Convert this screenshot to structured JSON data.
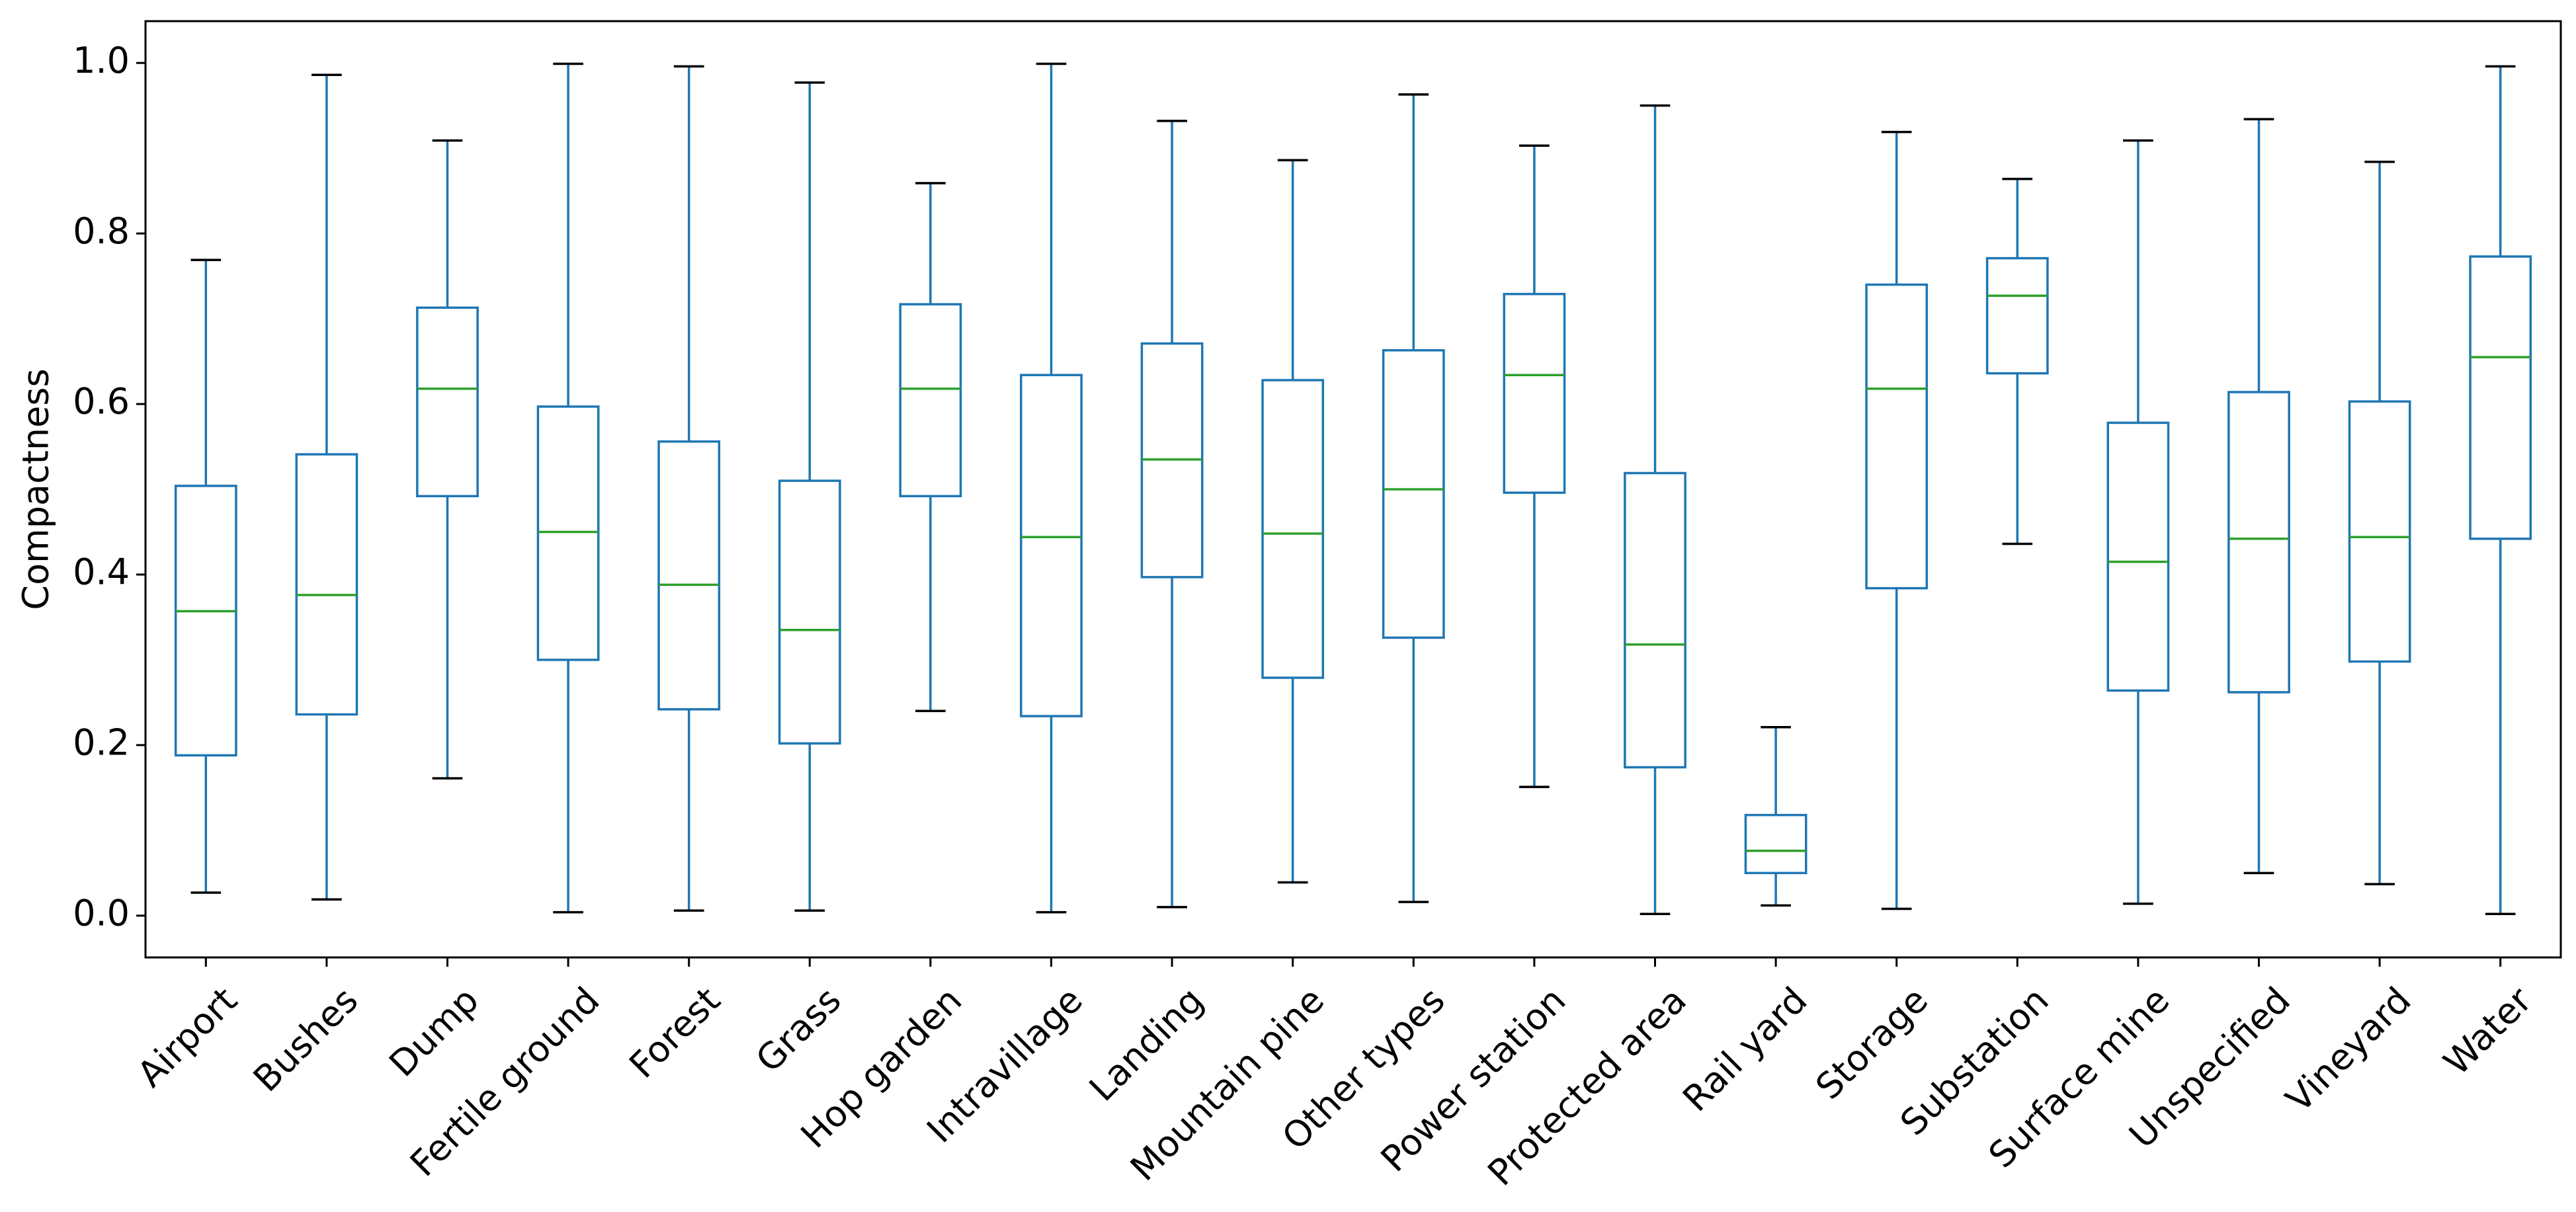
{
  "chart_data": {
    "type": "box",
    "y_label": "Compactness",
    "categories": [
      "Airport",
      "Bushes",
      "Dump",
      "Fertile ground",
      "Forest",
      "Grass",
      "Hop garden",
      "Intravillage",
      "Landing",
      "Mountain pine",
      "Other types",
      "Power station",
      "Protected area",
      "Rail yard",
      "Storage",
      "Substation",
      "Surface mine",
      "Unspecified",
      "Vineyard",
      "Water"
    ],
    "stats": [
      {
        "low": 0.027,
        "q1": 0.188,
        "median": 0.357,
        "q3": 0.504,
        "high": 0.769
      },
      {
        "low": 0.019,
        "q1": 0.236,
        "median": 0.376,
        "q3": 0.541,
        "high": 0.986
      },
      {
        "low": 0.161,
        "q1": 0.492,
        "median": 0.618,
        "q3": 0.713,
        "high": 0.909
      },
      {
        "low": 0.004,
        "q1": 0.3,
        "median": 0.45,
        "q3": 0.597,
        "high": 0.999
      },
      {
        "low": 0.006,
        "q1": 0.242,
        "median": 0.388,
        "q3": 0.556,
        "high": 0.996
      },
      {
        "low": 0.006,
        "q1": 0.202,
        "median": 0.335,
        "q3": 0.51,
        "high": 0.977
      },
      {
        "low": 0.24,
        "q1": 0.492,
        "median": 0.618,
        "q3": 0.717,
        "high": 0.859
      },
      {
        "low": 0.004,
        "q1": 0.234,
        "median": 0.444,
        "q3": 0.634,
        "high": 0.999
      },
      {
        "low": 0.01,
        "q1": 0.397,
        "median": 0.535,
        "q3": 0.671,
        "high": 0.932
      },
      {
        "low": 0.039,
        "q1": 0.279,
        "median": 0.448,
        "q3": 0.628,
        "high": 0.886
      },
      {
        "low": 0.016,
        "q1": 0.326,
        "median": 0.5,
        "q3": 0.663,
        "high": 0.963
      },
      {
        "low": 0.151,
        "q1": 0.496,
        "median": 0.634,
        "q3": 0.729,
        "high": 0.903
      },
      {
        "low": 0.002,
        "q1": 0.174,
        "median": 0.318,
        "q3": 0.519,
        "high": 0.95
      },
      {
        "low": 0.012,
        "q1": 0.05,
        "median": 0.076,
        "q3": 0.118,
        "high": 0.221
      },
      {
        "low": 0.008,
        "q1": 0.384,
        "median": 0.618,
        "q3": 0.74,
        "high": 0.919
      },
      {
        "low": 0.436,
        "q1": 0.636,
        "median": 0.727,
        "q3": 0.771,
        "high": 0.864
      },
      {
        "low": 0.014,
        "q1": 0.264,
        "median": 0.415,
        "q3": 0.578,
        "high": 0.909
      },
      {
        "low": 0.05,
        "q1": 0.262,
        "median": 0.442,
        "q3": 0.614,
        "high": 0.934
      },
      {
        "low": 0.037,
        "q1": 0.298,
        "median": 0.444,
        "q3": 0.603,
        "high": 0.884
      },
      {
        "low": 0.002,
        "q1": 0.442,
        "median": 0.655,
        "q3": 0.773,
        "high": 0.996
      }
    ],
    "color": "#1f77b4",
    "median_color": "#2ca02c",
    "cap_color": "#000000",
    "ylim": [
      -0.049,
      1.049
    ],
    "yticks": [
      {
        "value": 0,
        "label": "0.0"
      },
      0.2,
      0.4,
      0.6,
      0.8,
      {
        "value": 1,
        "label": "1.0"
      }
    ]
  }
}
